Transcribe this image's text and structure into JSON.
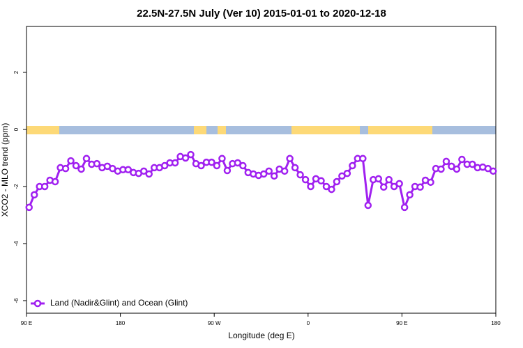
{
  "chart_data": {
    "type": "line",
    "title": "22.5N-27.5N July (Ver 10)   2015-01-01 to 2020-12-18",
    "x_label": "Longitude (deg E)",
    "y_label": "XCO2 - MLO trend (ppm)",
    "xlim": [
      90,
      540
    ],
    "ylim": [
      -6.44,
      3.61
    ],
    "xticks": [
      {
        "value": 90,
        "label": "90 E"
      },
      180,
      {
        "value": 270,
        "label": "90 W"
      },
      {
        "value": 360,
        "label": "0"
      },
      {
        "value": 450,
        "label": "90 E"
      },
      {
        "value": 540,
        "label": "180"
      }
    ],
    "yticks": [
      2,
      0,
      -2,
      -4,
      -6
    ],
    "legend": "bottom-left",
    "x": [
      92.5,
      97.5,
      102.5,
      107.5,
      112.5,
      117.5,
      122.5,
      127.5,
      132.5,
      137.5,
      142.5,
      147.5,
      152.5,
      157.5,
      162.5,
      167.5,
      172.5,
      177.5,
      182.5,
      187.5,
      192.5,
      197.5,
      202.5,
      207.5,
      212.5,
      217.5,
      222.5,
      227.5,
      232.5,
      237.5,
      242.5,
      247.5,
      252.5,
      257.5,
      262.5,
      267.5,
      272.5,
      277.5,
      282.5,
      287.5,
      292.5,
      297.5,
      302.5,
      307.5,
      312.5,
      317.5,
      322.5,
      327.5,
      332.5,
      337.5,
      342.5,
      347.5,
      352.5,
      357.5,
      362.5,
      367.5,
      372.5,
      377.5,
      382.5,
      387.5,
      392.5,
      397.5,
      402.5,
      407.5,
      412.5,
      417.5,
      422.5,
      427.5,
      432.5,
      437.5,
      442.5,
      447.5,
      452.5,
      457.5,
      462.5,
      467.5,
      472.5,
      477.5,
      482.5,
      487.5,
      492.5,
      497.5,
      502.5,
      507.5,
      512.5,
      517.5,
      522.5,
      527.5,
      532.5,
      537.5
    ],
    "series": [
      {
        "name": "Land (Nadir&Glint) and Ocean (Glint)",
        "color": "#a020f0",
        "values": [
          -2.73,
          -2.29,
          -2.0,
          -2.0,
          -1.78,
          -1.83,
          -1.34,
          -1.37,
          -1.1,
          -1.27,
          -1.39,
          -1.02,
          -1.22,
          -1.2,
          -1.34,
          -1.29,
          -1.37,
          -1.46,
          -1.41,
          -1.41,
          -1.51,
          -1.54,
          -1.46,
          -1.56,
          -1.34,
          -1.34,
          -1.27,
          -1.17,
          -1.17,
          -0.95,
          -1.0,
          -0.88,
          -1.2,
          -1.27,
          -1.15,
          -1.15,
          -1.27,
          -1.02,
          -1.44,
          -1.2,
          -1.17,
          -1.27,
          -1.51,
          -1.56,
          -1.61,
          -1.56,
          -1.46,
          -1.63,
          -1.39,
          -1.46,
          -1.02,
          -1.34,
          -1.59,
          -1.76,
          -2.0,
          -1.73,
          -1.8,
          -2.0,
          -2.1,
          -1.83,
          -1.63,
          -1.54,
          -1.27,
          -1.02,
          -1.02,
          -2.66,
          -1.76,
          -1.73,
          -2.02,
          -1.76,
          -2.0,
          -1.9,
          -2.73,
          -2.29,
          -2.0,
          -2.02,
          -1.78,
          -1.85,
          -1.37,
          -1.39,
          -1.12,
          -1.29,
          -1.39,
          -1.05,
          -1.22,
          -1.22,
          -1.34,
          -1.32,
          -1.37,
          -1.46
        ]
      }
    ]
  }
}
